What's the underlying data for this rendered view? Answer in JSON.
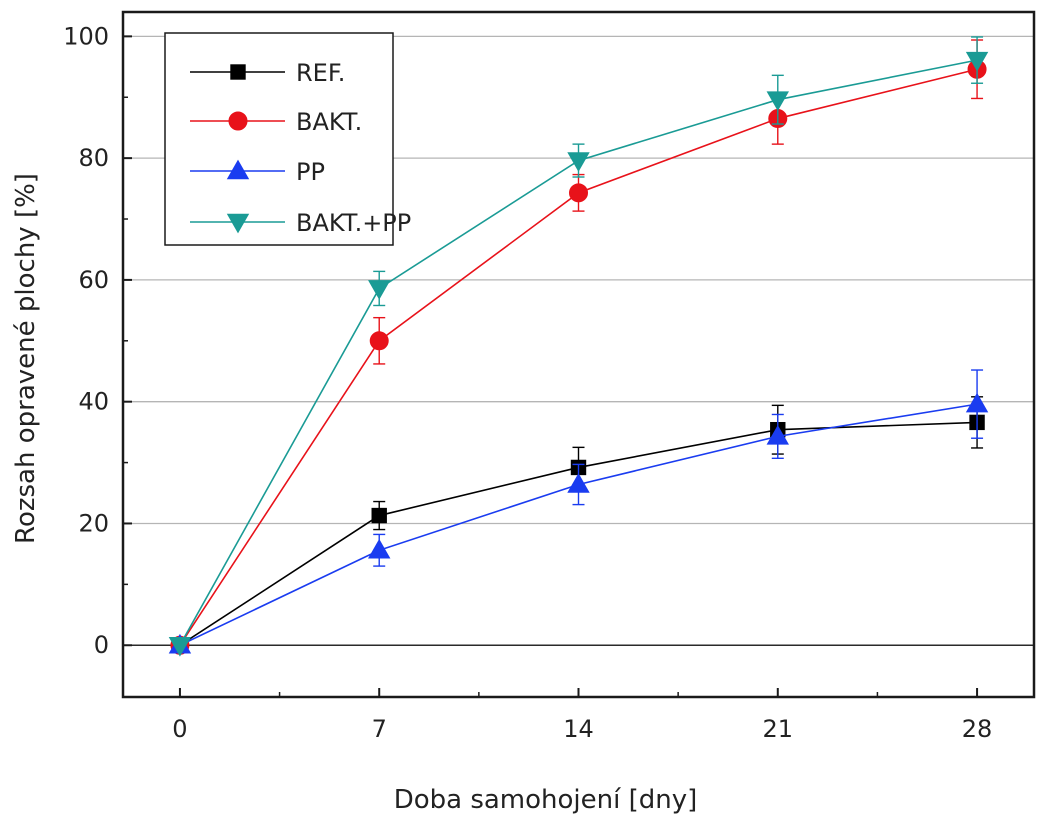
{
  "chart_data": {
    "type": "line",
    "xlabel": "Doba samohojení [dny]",
    "ylabel": "Rozsah opravené plochy [%]",
    "x": [
      0,
      7,
      14,
      21,
      28
    ],
    "xlim": [
      -2,
      30
    ],
    "ylim": [
      -8.5,
      104
    ],
    "xticks": [
      0,
      7,
      14,
      21,
      28
    ],
    "xticks_minor": [
      3.5,
      10.5,
      17.5,
      24.5
    ],
    "yticks": [
      0,
      20,
      40,
      60,
      80,
      100
    ],
    "yticks_minor": [
      10,
      30,
      50,
      70,
      90
    ],
    "grid": "horizontal",
    "legend_position": "top-left",
    "series": [
      {
        "name": "REF.",
        "color": "#000000",
        "marker": "square",
        "values": [
          0,
          21.3,
          29.2,
          35.4,
          36.6
        ],
        "errors": [
          0,
          2.3,
          3.3,
          4.0,
          4.2
        ]
      },
      {
        "name": "BAKT.",
        "color": "#e8121a",
        "marker": "circle",
        "values": [
          0,
          50.0,
          74.3,
          86.5,
          94.6
        ],
        "errors": [
          0,
          3.8,
          3.0,
          4.2,
          4.8
        ]
      },
      {
        "name": "PP",
        "color": "#1a3cf0",
        "marker": "triangle-up",
        "values": [
          0,
          15.6,
          26.4,
          34.3,
          39.6
        ],
        "errors": [
          0,
          2.6,
          3.3,
          3.6,
          5.6
        ]
      },
      {
        "name": "BAKT.+PP",
        "color": "#1a9b95",
        "marker": "triangle-down",
        "values": [
          0,
          58.6,
          79.6,
          89.6,
          96.1
        ],
        "errors": [
          0,
          2.8,
          2.7,
          4.0,
          3.8
        ]
      }
    ]
  }
}
